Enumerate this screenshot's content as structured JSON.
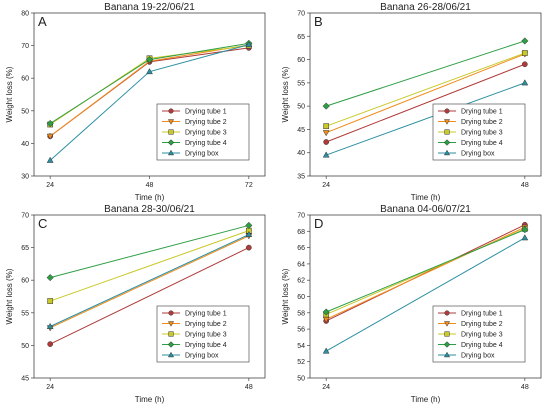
{
  "colors": {
    "Drying tube 1": "#b03a3a",
    "Drying tube 2": "#f08c1a",
    "Drying tube 3": "#c8c826",
    "Drying tube 4": "#2e9e44",
    "Drying box": "#2a8fa0"
  },
  "markers": {
    "Drying tube 1": "circle",
    "Drying tube 2": "triangle-down",
    "Drying tube 3": "square",
    "Drying tube 4": "diamond",
    "Drying box": "triangle-up"
  },
  "chart_data": [
    {
      "type": "line",
      "panel_label": "A",
      "title": "Banana 19-22/06/21",
      "xlabel": "Time (h)",
      "ylabel": "Weight loss (%)",
      "x": [
        24,
        48,
        72
      ],
      "xticks": [
        "24",
        "48",
        "72"
      ],
      "ylim": [
        30,
        80
      ],
      "yticks": [
        30,
        40,
        50,
        60,
        70,
        80
      ],
      "legend": "bottom-right",
      "series": [
        {
          "name": "Drying tube 1",
          "values": [
            42.2,
            65.0,
            69.3
          ]
        },
        {
          "name": "Drying tube 2",
          "values": [
            42.2,
            65.2,
            70.2
          ]
        },
        {
          "name": "Drying tube 3",
          "values": [
            45.8,
            66.1,
            70.0
          ]
        },
        {
          "name": "Drying tube 4",
          "values": [
            46.1,
            65.7,
            70.7
          ]
        },
        {
          "name": "Drying box",
          "values": [
            34.8,
            62.0,
            70.3
          ]
        }
      ]
    },
    {
      "type": "line",
      "panel_label": "B",
      "title": "Banana 26-28/06/21",
      "xlabel": "Time (h)",
      "ylabel": "Weight loss (%)",
      "x": [
        24,
        48
      ],
      "xticks": [
        "24",
        "48"
      ],
      "ylim": [
        35,
        70
      ],
      "yticks": [
        35,
        40,
        45,
        50,
        55,
        60,
        65,
        70
      ],
      "legend": "bottom-right",
      "series": [
        {
          "name": "Drying tube 1",
          "values": [
            42.3,
            59.0
          ]
        },
        {
          "name": "Drying tube 2",
          "values": [
            44.3,
            61.2
          ]
        },
        {
          "name": "Drying tube 3",
          "values": [
            45.7,
            61.4
          ]
        },
        {
          "name": "Drying tube 4",
          "values": [
            50.0,
            64.0
          ]
        },
        {
          "name": "Drying box",
          "values": [
            39.5,
            55.0
          ]
        }
      ]
    },
    {
      "type": "line",
      "panel_label": "C",
      "title": "Banana 28-30/06/21",
      "xlabel": "Time (h)",
      "ylabel": "Weight loss (%)",
      "x": [
        24,
        48
      ],
      "xticks": [
        "24",
        "48"
      ],
      "ylim": [
        45,
        70
      ],
      "yticks": [
        45,
        50,
        55,
        60,
        65,
        70
      ],
      "legend": "bottom-right",
      "series": [
        {
          "name": "Drying tube 1",
          "values": [
            50.2,
            65.0
          ]
        },
        {
          "name": "Drying tube 2",
          "values": [
            52.7,
            66.8
          ]
        },
        {
          "name": "Drying tube 3",
          "values": [
            56.8,
            67.6
          ]
        },
        {
          "name": "Drying tube 4",
          "values": [
            60.4,
            68.4
          ]
        },
        {
          "name": "Drying box",
          "values": [
            52.9,
            67.0
          ]
        }
      ]
    },
    {
      "type": "line",
      "panel_label": "D",
      "title": "Banana 04-06/07/21",
      "xlabel": "Time (h)",
      "ylabel": "Weight loss (%)",
      "x": [
        24,
        48
      ],
      "xticks": [
        "24",
        "48"
      ],
      "ylim": [
        50,
        70
      ],
      "yticks": [
        50,
        52,
        54,
        56,
        58,
        60,
        62,
        64,
        66,
        68,
        70
      ],
      "legend": "bottom-right",
      "series": [
        {
          "name": "Drying tube 1",
          "values": [
            57.0,
            68.8
          ]
        },
        {
          "name": "Drying tube 2",
          "values": [
            57.2,
            68.5
          ]
        },
        {
          "name": "Drying tube 3",
          "values": [
            57.8,
            68.3
          ]
        },
        {
          "name": "Drying tube 4",
          "values": [
            58.1,
            68.2
          ]
        },
        {
          "name": "Drying box",
          "values": [
            53.3,
            67.2
          ]
        }
      ]
    }
  ]
}
